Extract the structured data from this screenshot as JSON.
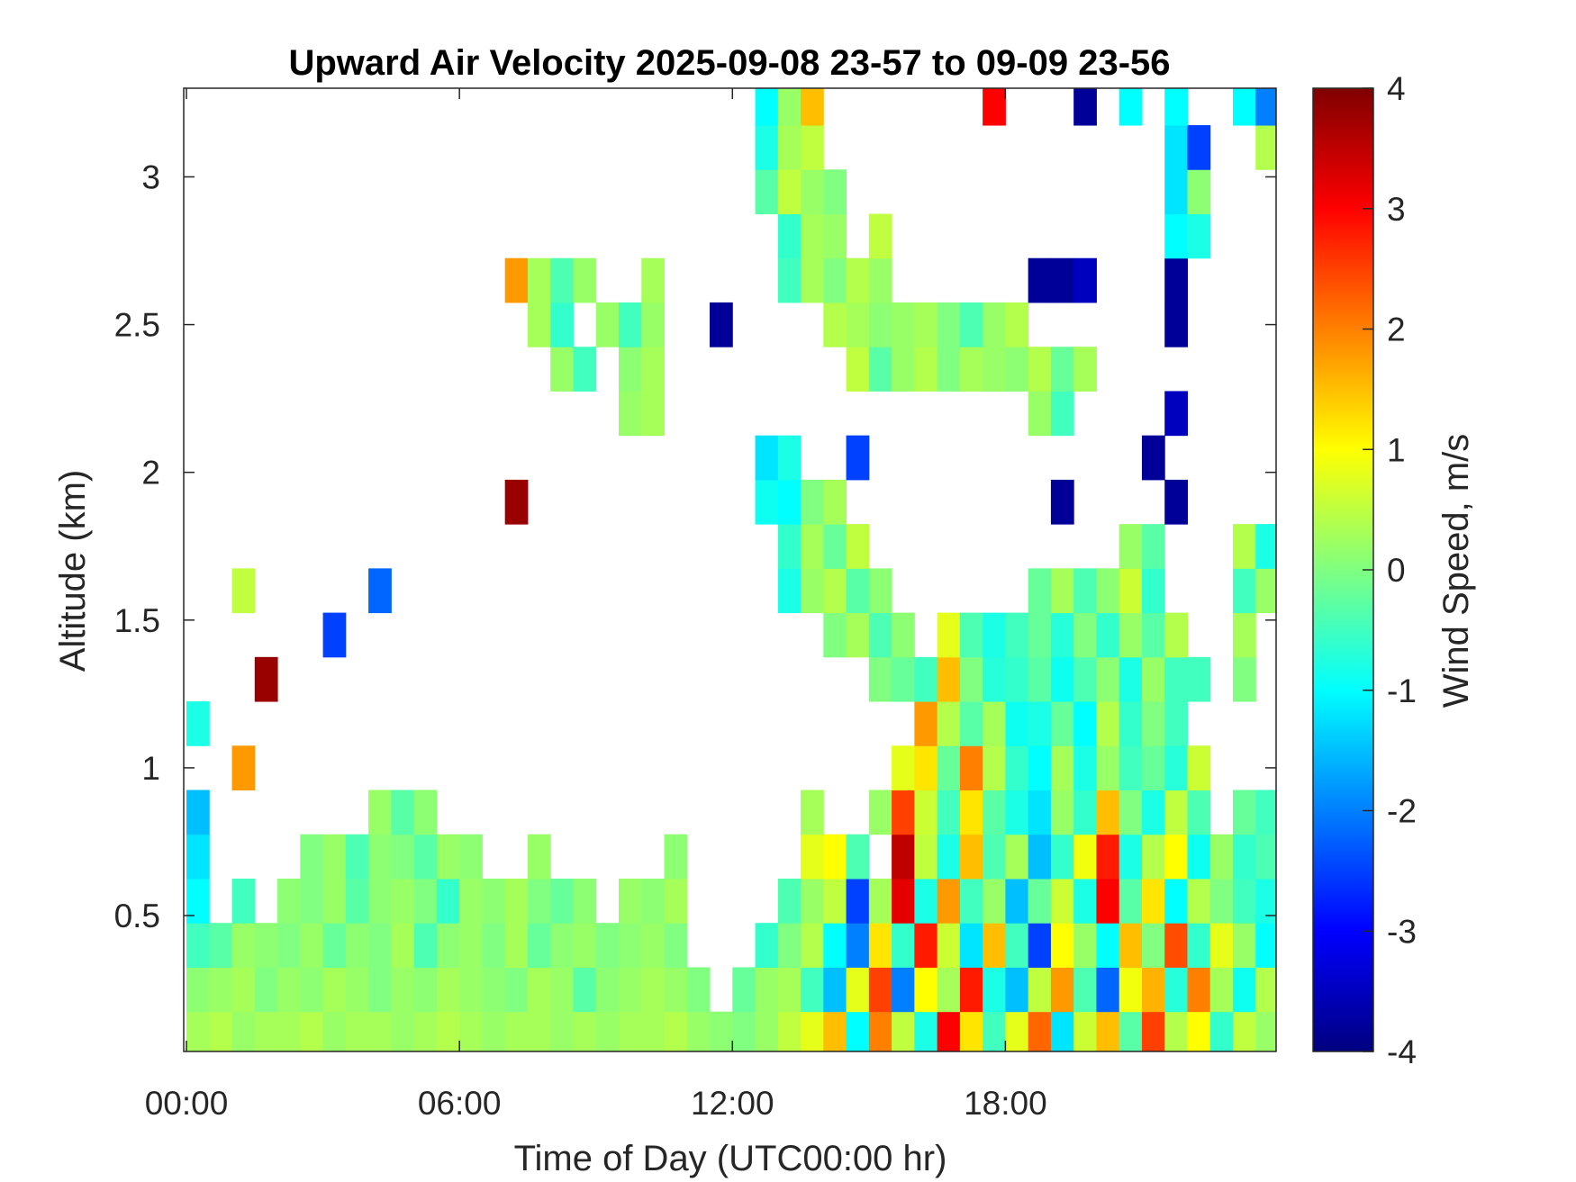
{
  "chart_data": {
    "type": "heatmap",
    "title": "Upward Air Velocity 2025-09-08 23-57 to 09-09 23-56",
    "xlabel": "Time of Day (UTC00:00 hr)",
    "ylabel": "Altitude (km)",
    "colorbar_label": "Wind Speed, m/s",
    "colormap": "jet",
    "xlim": [
      -0.06,
      23.95
    ],
    "ylim": [
      0.04,
      3.3
    ],
    "clim": [
      -4,
      4
    ],
    "x_ticks": [
      0,
      6,
      12,
      18
    ],
    "x_tick_labels": [
      "00:00",
      "06:00",
      "12:00",
      "18:00"
    ],
    "y_ticks": [
      0.5,
      1,
      1.5,
      2,
      2.5,
      3
    ],
    "y_tick_labels": [
      "0.5",
      "1",
      "1.5",
      "2",
      "2.5",
      "3"
    ],
    "colorbar_ticks": [
      4,
      3,
      2,
      1,
      0,
      -1,
      -2,
      -3,
      -4
    ],
    "colorbar_tick_labels": [
      "4",
      "3",
      "2",
      "1",
      "0",
      "-1",
      "-2",
      "-3",
      "-4"
    ],
    "x_bin_hours": 0.5,
    "y_bin_km": 0.15,
    "altitudes": [
      0.1,
      0.25,
      0.4,
      0.55,
      0.7,
      0.85,
      1.0,
      1.15,
      1.3,
      1.45,
      1.6,
      1.75,
      1.9,
      2.05,
      2.2,
      2.35,
      2.5,
      2.65,
      2.8,
      2.95,
      3.1,
      3.25
    ],
    "values": [
      [
        0.3,
        0.4,
        0.2,
        0.3,
        0.3,
        0.4,
        0.2,
        0.3,
        0.3,
        0.2,
        0.3,
        0.4,
        0.3,
        0.2,
        0.3,
        0.3,
        0.2,
        0.3,
        0.2,
        0.3,
        0.3,
        0.4,
        0.2,
        0.1,
        0.0,
        0.2,
        0.5,
        0.8,
        1.5,
        -1.0,
        2.0,
        0.5,
        -0.8,
        3.0,
        1.2,
        -0.5,
        0.8,
        2.2,
        -1.2,
        0.6,
        1.5,
        -0.3,
        2.5,
        0.4,
        1.0,
        -0.6,
        0.5,
        0.2
      ],
      [
        0.1,
        0.2,
        0.3,
        0.0,
        0.2,
        0.1,
        0.3,
        0.2,
        0.0,
        0.2,
        0.1,
        0.3,
        0.2,
        0.1,
        0.0,
        0.3,
        0.2,
        -0.3,
        0.1,
        0.2,
        0.3,
        0.2,
        0.0,
        null,
        -0.2,
        0.2,
        0.3,
        -0.5,
        -1.5,
        0.8,
        2.5,
        -2.0,
        1.0,
        0.3,
        2.8,
        -0.8,
        -1.5,
        0.5,
        1.8,
        -0.4,
        -2.2,
        0.9,
        1.6,
        -0.7,
        2.0,
        0.3,
        -0.9,
        0.4
      ],
      [
        -0.5,
        -0.3,
        0.2,
        0.1,
        0.0,
        0.2,
        -0.2,
        0.1,
        0.0,
        0.3,
        -0.4,
        0.1,
        0.2,
        0.0,
        0.3,
        -0.2,
        0.1,
        0.2,
        0.0,
        0.1,
        0.2,
        0.0,
        null,
        null,
        null,
        -0.6,
        0.0,
        0.4,
        -1.0,
        -2.0,
        1.2,
        -0.6,
        2.8,
        0.6,
        -1.2,
        1.5,
        -0.5,
        -2.5,
        1.0,
        0.2,
        -1.0,
        1.5,
        0.0,
        2.4,
        -0.6,
        0.8,
        0.2,
        -1.0
      ],
      [
        -1.0,
        null,
        -0.5,
        null,
        0.1,
        0.0,
        0.2,
        -0.3,
        0.1,
        0.2,
        0.0,
        -0.6,
        0.2,
        0.1,
        0.3,
        0.0,
        -0.2,
        0.1,
        null,
        0.2,
        0.1,
        0.3,
        null,
        null,
        null,
        null,
        -0.4,
        0.2,
        0.5,
        -2.5,
        0.3,
        3.2,
        -0.8,
        1.8,
        -0.5,
        0.2,
        -1.5,
        -0.2,
        0.6,
        -0.8,
        3.0,
        -0.3,
        1.2,
        -1.0,
        0.4,
        0.0,
        -0.5,
        -0.8
      ],
      [
        -1.2,
        null,
        null,
        null,
        null,
        0.0,
        0.2,
        -0.4,
        0.1,
        0.0,
        -0.3,
        0.2,
        0.1,
        null,
        null,
        0.2,
        null,
        null,
        null,
        null,
        null,
        0.1,
        null,
        null,
        null,
        null,
        null,
        0.8,
        1.0,
        -0.4,
        null,
        3.5,
        0.5,
        -0.8,
        1.5,
        -0.4,
        0.3,
        -1.5,
        -0.6,
        0.9,
        2.8,
        -0.8,
        0.4,
        1.0,
        -0.9,
        0.2,
        -0.6,
        -0.4
      ],
      [
        -1.5,
        null,
        null,
        null,
        null,
        null,
        null,
        null,
        0.2,
        -0.3,
        0.1,
        null,
        null,
        null,
        null,
        null,
        null,
        null,
        null,
        null,
        null,
        null,
        null,
        null,
        null,
        null,
        null,
        0.3,
        null,
        null,
        0.2,
        2.5,
        0.6,
        -0.5,
        1.2,
        -0.3,
        -0.8,
        -1.2,
        0.2,
        -0.6,
        1.5,
        0.0,
        -0.8,
        0.5,
        -0.4,
        null,
        -0.2,
        -0.5
      ],
      [
        null,
        null,
        1.8,
        null,
        null,
        null,
        null,
        null,
        null,
        null,
        null,
        null,
        null,
        null,
        null,
        null,
        null,
        null,
        null,
        null,
        null,
        null,
        null,
        null,
        null,
        null,
        null,
        null,
        null,
        null,
        null,
        0.8,
        1.2,
        -0.2,
        2.0,
        0.4,
        -0.6,
        -1.0,
        0.3,
        -0.8,
        0.2,
        -0.5,
        -0.2,
        -0.7,
        0.6,
        null,
        null,
        null
      ],
      [
        -0.8,
        null,
        null,
        null,
        null,
        null,
        null,
        null,
        null,
        null,
        null,
        null,
        null,
        null,
        null,
        null,
        null,
        null,
        null,
        null,
        null,
        null,
        null,
        null,
        null,
        null,
        null,
        null,
        null,
        null,
        null,
        null,
        1.8,
        0.4,
        -0.3,
        0.3,
        -0.9,
        -0.8,
        -0.2,
        -1.0,
        0.4,
        -0.6,
        0.0,
        -0.5,
        null,
        null,
        null,
        null
      ],
      [
        null,
        null,
        null,
        3.8,
        null,
        null,
        null,
        null,
        null,
        null,
        null,
        null,
        null,
        null,
        null,
        null,
        null,
        null,
        null,
        null,
        null,
        null,
        null,
        null,
        null,
        null,
        null,
        null,
        null,
        null,
        0.0,
        -0.2,
        -0.5,
        1.5,
        0.0,
        -0.7,
        -0.6,
        -0.3,
        -0.9,
        -0.4,
        0.1,
        -0.8,
        0.2,
        -0.5,
        -0.5,
        null,
        0.0,
        null
      ],
      [
        null,
        null,
        null,
        null,
        null,
        null,
        -2.5,
        null,
        null,
        null,
        null,
        null,
        null,
        null,
        null,
        null,
        null,
        null,
        null,
        null,
        null,
        null,
        null,
        null,
        null,
        null,
        null,
        null,
        0.0,
        0.3,
        -0.4,
        0.1,
        null,
        0.8,
        -0.4,
        -0.8,
        -0.5,
        -0.2,
        -0.7,
        0.0,
        -0.6,
        0.2,
        -0.3,
        0.4,
        null,
        null,
        0.3,
        null
      ],
      [
        null,
        null,
        0.5,
        null,
        null,
        null,
        null,
        null,
        -2.2,
        null,
        null,
        null,
        null,
        null,
        null,
        null,
        null,
        null,
        null,
        null,
        null,
        null,
        null,
        null,
        null,
        null,
        -0.8,
        0.2,
        0.4,
        -0.3,
        0.1,
        null,
        null,
        null,
        null,
        null,
        null,
        -0.2,
        0.3,
        -0.4,
        0.1,
        0.6,
        -0.6,
        null,
        null,
        null,
        -0.5,
        0.2
      ],
      [
        null,
        null,
        null,
        null,
        null,
        null,
        null,
        null,
        null,
        null,
        null,
        null,
        null,
        null,
        null,
        null,
        null,
        null,
        null,
        null,
        null,
        null,
        null,
        null,
        null,
        null,
        -0.6,
        0.3,
        -0.2,
        0.5,
        null,
        null,
        null,
        null,
        null,
        null,
        null,
        null,
        null,
        null,
        null,
        0.2,
        -0.3,
        null,
        null,
        null,
        0.4,
        -0.8
      ],
      [
        null,
        null,
        null,
        null,
        null,
        null,
        null,
        null,
        null,
        null,
        null,
        null,
        null,
        null,
        3.8,
        null,
        null,
        null,
        null,
        null,
        null,
        null,
        null,
        null,
        null,
        -0.9,
        -1.0,
        0.0,
        0.3,
        null,
        null,
        null,
        null,
        null,
        null,
        null,
        null,
        null,
        -3.8,
        null,
        null,
        null,
        null,
        -3.8,
        null,
        null,
        null,
        null
      ],
      [
        null,
        null,
        null,
        null,
        null,
        null,
        null,
        null,
        null,
        null,
        null,
        null,
        null,
        null,
        null,
        null,
        null,
        null,
        null,
        null,
        null,
        null,
        null,
        null,
        null,
        -1.2,
        -0.8,
        null,
        null,
        -2.5,
        null,
        null,
        null,
        null,
        null,
        null,
        null,
        null,
        null,
        null,
        null,
        null,
        -3.8,
        null,
        null,
        null,
        null,
        null
      ],
      [
        null,
        null,
        null,
        null,
        null,
        null,
        null,
        null,
        null,
        null,
        null,
        null,
        null,
        null,
        null,
        null,
        null,
        null,
        null,
        0.2,
        0.3,
        null,
        null,
        null,
        null,
        null,
        null,
        null,
        null,
        null,
        null,
        null,
        null,
        null,
        null,
        null,
        null,
        0.2,
        -0.5,
        null,
        null,
        null,
        null,
        -3.5,
        null,
        null,
        null,
        null
      ],
      [
        null,
        null,
        null,
        null,
        null,
        null,
        null,
        null,
        null,
        null,
        null,
        null,
        null,
        null,
        null,
        null,
        0.2,
        -0.5,
        null,
        0.1,
        0.3,
        null,
        null,
        null,
        null,
        null,
        null,
        null,
        null,
        0.5,
        -0.3,
        0.2,
        0.4,
        0.0,
        0.3,
        0.2,
        0.1,
        0.4,
        -0.2,
        0.3,
        null,
        null,
        null,
        null,
        null,
        null,
        null,
        null
      ],
      [
        null,
        null,
        null,
        null,
        null,
        null,
        null,
        null,
        null,
        null,
        null,
        null,
        null,
        null,
        null,
        0.3,
        -0.6,
        null,
        0.2,
        -0.5,
        0.2,
        null,
        null,
        -3.8,
        null,
        null,
        null,
        null,
        0.4,
        0.3,
        0.1,
        0.2,
        0.3,
        0.0,
        -0.4,
        0.2,
        0.4,
        null,
        null,
        null,
        null,
        null,
        null,
        -3.8,
        null,
        null,
        null,
        null
      ],
      [
        null,
        null,
        null,
        null,
        null,
        null,
        null,
        null,
        null,
        null,
        null,
        null,
        null,
        null,
        1.8,
        0.3,
        -0.4,
        0.2,
        null,
        null,
        0.3,
        null,
        null,
        null,
        null,
        null,
        -0.5,
        0.3,
        0.0,
        0.4,
        0.2,
        null,
        null,
        null,
        null,
        null,
        null,
        -3.8,
        -3.8,
        -3.5,
        null,
        null,
        null,
        -3.8,
        null,
        null,
        null,
        null
      ],
      [
        null,
        null,
        null,
        null,
        null,
        null,
        null,
        null,
        null,
        null,
        null,
        null,
        null,
        null,
        null,
        null,
        null,
        null,
        null,
        null,
        null,
        null,
        null,
        null,
        null,
        null,
        -0.6,
        0.3,
        0.2,
        null,
        0.5,
        null,
        null,
        null,
        null,
        null,
        null,
        null,
        null,
        null,
        null,
        null,
        null,
        -1.0,
        -0.8,
        null,
        null,
        null
      ],
      [
        null,
        null,
        null,
        null,
        null,
        null,
        null,
        null,
        null,
        null,
        null,
        null,
        null,
        null,
        null,
        null,
        null,
        null,
        null,
        null,
        null,
        null,
        null,
        null,
        null,
        -0.3,
        0.5,
        0.2,
        0.0,
        null,
        null,
        null,
        null,
        null,
        null,
        null,
        null,
        null,
        null,
        null,
        null,
        null,
        null,
        -1.2,
        0.1,
        null,
        null,
        null
      ],
      [
        null,
        null,
        null,
        null,
        null,
        null,
        null,
        null,
        null,
        null,
        null,
        null,
        null,
        null,
        null,
        null,
        null,
        null,
        null,
        null,
        null,
        null,
        null,
        null,
        null,
        -0.8,
        0.3,
        0.5,
        null,
        null,
        null,
        null,
        null,
        null,
        null,
        null,
        null,
        null,
        null,
        null,
        null,
        null,
        null,
        -1.2,
        -2.5,
        null,
        null,
        0.4
      ],
      [
        null,
        null,
        null,
        null,
        null,
        null,
        null,
        null,
        null,
        null,
        null,
        null,
        null,
        null,
        null,
        null,
        null,
        null,
        null,
        null,
        null,
        null,
        null,
        null,
        null,
        -1.0,
        0.2,
        1.5,
        null,
        null,
        null,
        null,
        null,
        null,
        null,
        3.0,
        null,
        null,
        null,
        -3.8,
        null,
        -1.0,
        null,
        -1.0,
        null,
        null,
        -1.0,
        -2.0
      ]
    ]
  }
}
